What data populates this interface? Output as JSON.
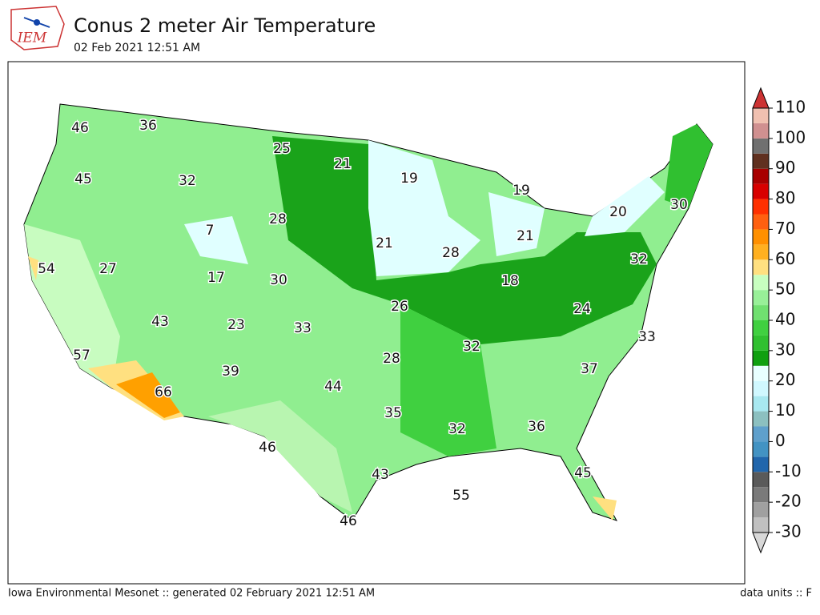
{
  "header": {
    "logo": "IEM",
    "title": "Conus 2 meter Air Temperature",
    "subtitle": "02 Feb 2021 12:51 AM"
  },
  "map": {
    "labels": [
      46,
      36,
      25,
      21,
      19,
      19,
      45,
      32,
      28,
      7,
      21,
      28,
      21,
      20,
      30,
      54,
      27,
      17,
      30,
      18,
      32,
      26,
      24,
      43,
      23,
      33,
      33,
      57,
      32,
      28,
      37,
      39,
      44,
      66,
      35,
      32,
      36,
      46,
      43,
      45,
      55,
      46
    ]
  },
  "colorbar": {
    "ticks": [
      -30,
      -20,
      -10,
      0,
      10,
      20,
      30,
      40,
      50,
      60,
      70,
      80,
      90,
      100,
      110
    ]
  },
  "footer": {
    "left": "Iowa Environmental Mesonet :: generated 02 February 2021 12:51 AM",
    "right": "data units :: F"
  }
}
